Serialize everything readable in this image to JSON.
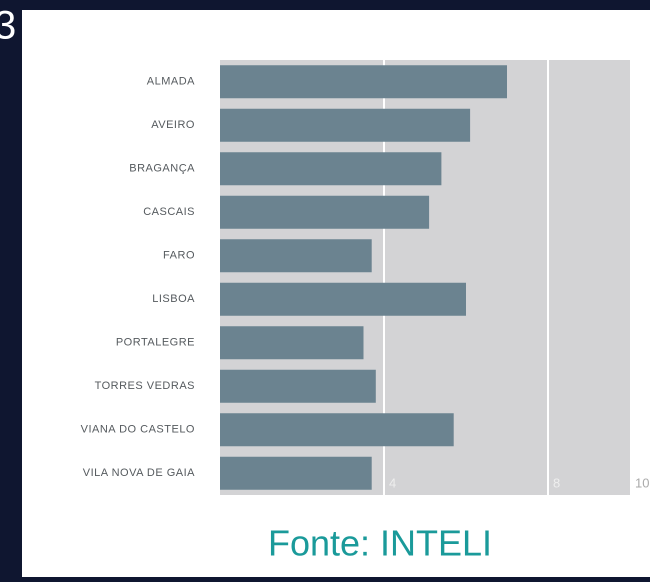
{
  "page_number": "3",
  "chart_data": {
    "type": "barh",
    "categories": [
      "ALMADA",
      "AVEIRO",
      "BRAGANÇA",
      "CASCAIS",
      "FARO",
      "LISBOA",
      "PORTALEGRE",
      "TORRES VEDRAS",
      "VIANA DO CASTELO",
      "VILA NOVA DE GAIA"
    ],
    "values": [
      7.0,
      6.1,
      5.4,
      5.1,
      3.7,
      6.0,
      3.5,
      3.8,
      5.7,
      3.7
    ],
    "color": "#6b8390",
    "xlim": [
      0,
      10
    ],
    "xticks": [
      4,
      8,
      10
    ],
    "grid": true,
    "source": "Fonte: INTELI"
  }
}
